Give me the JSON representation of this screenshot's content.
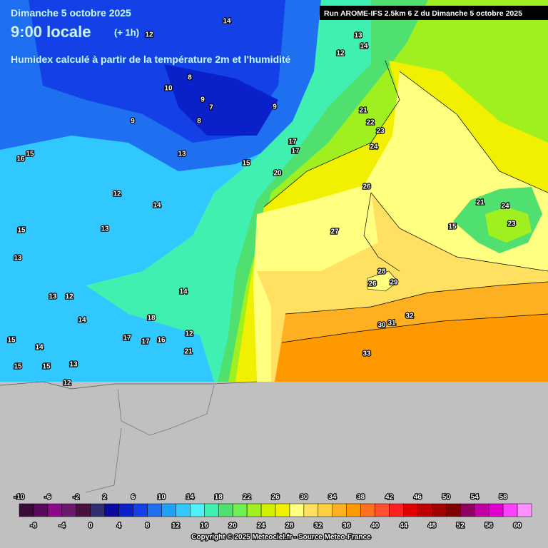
{
  "header": {
    "date": "Dimanche 5 octobre 2025",
    "time": "9:00 locale",
    "offset": "(+ 1h)",
    "subtitle": "Humidex calculé à partir de la température 2m et l'humidité",
    "run": "Run AROME-IFS 2.5km 6 Z du Dimanche 5 octobre 2025"
  },
  "contour_labels": [
    14,
    12,
    13,
    14,
    12,
    8,
    10,
    9,
    7,
    9,
    9,
    8,
    21,
    22,
    23,
    17,
    17,
    13,
    24,
    15,
    16,
    15,
    20,
    26,
    12,
    14,
    21,
    24,
    13,
    15,
    27,
    15,
    23,
    13,
    28,
    26,
    29,
    13,
    12,
    14,
    18,
    32,
    14,
    31,
    30,
    17,
    17,
    16,
    12,
    15,
    14,
    21,
    33,
    15,
    15,
    13,
    12
  ],
  "colorbar": {
    "top_labels": [
      -10,
      -6,
      -2,
      2,
      6,
      10,
      14,
      18,
      22,
      26,
      30,
      34,
      38,
      42,
      46,
      50,
      54,
      58
    ],
    "bottom_labels": [
      -8,
      -4,
      0,
      4,
      8,
      12,
      16,
      20,
      24,
      28,
      32,
      36,
      40,
      44,
      48,
      52,
      56,
      60
    ],
    "colors": [
      "#3a0a3a",
      "#5a0a5a",
      "#8a0a8a",
      "#6a1a6a",
      "#4a1040",
      "#303070",
      "#0a0aa0",
      "#0a20c8",
      "#1440e8",
      "#1e70f0",
      "#20a0f8",
      "#30c8ff",
      "#50f0ff",
      "#40f0b0",
      "#50e070",
      "#70f050",
      "#a0f020",
      "#d0f000",
      "#f0f000",
      "#ffff80",
      "#ffe060",
      "#ffd040",
      "#ffb020",
      "#ff9900",
      "#ff7020",
      "#ff5030",
      "#ff2020",
      "#e00000",
      "#c00000",
      "#a00000",
      "#800000",
      "#900060",
      "#c000a0",
      "#e000d0",
      "#ff40ff",
      "#ff90ff"
    ]
  },
  "copyright": "Copyright © 2025 Meteociel.fr - Source Meteo-France"
}
